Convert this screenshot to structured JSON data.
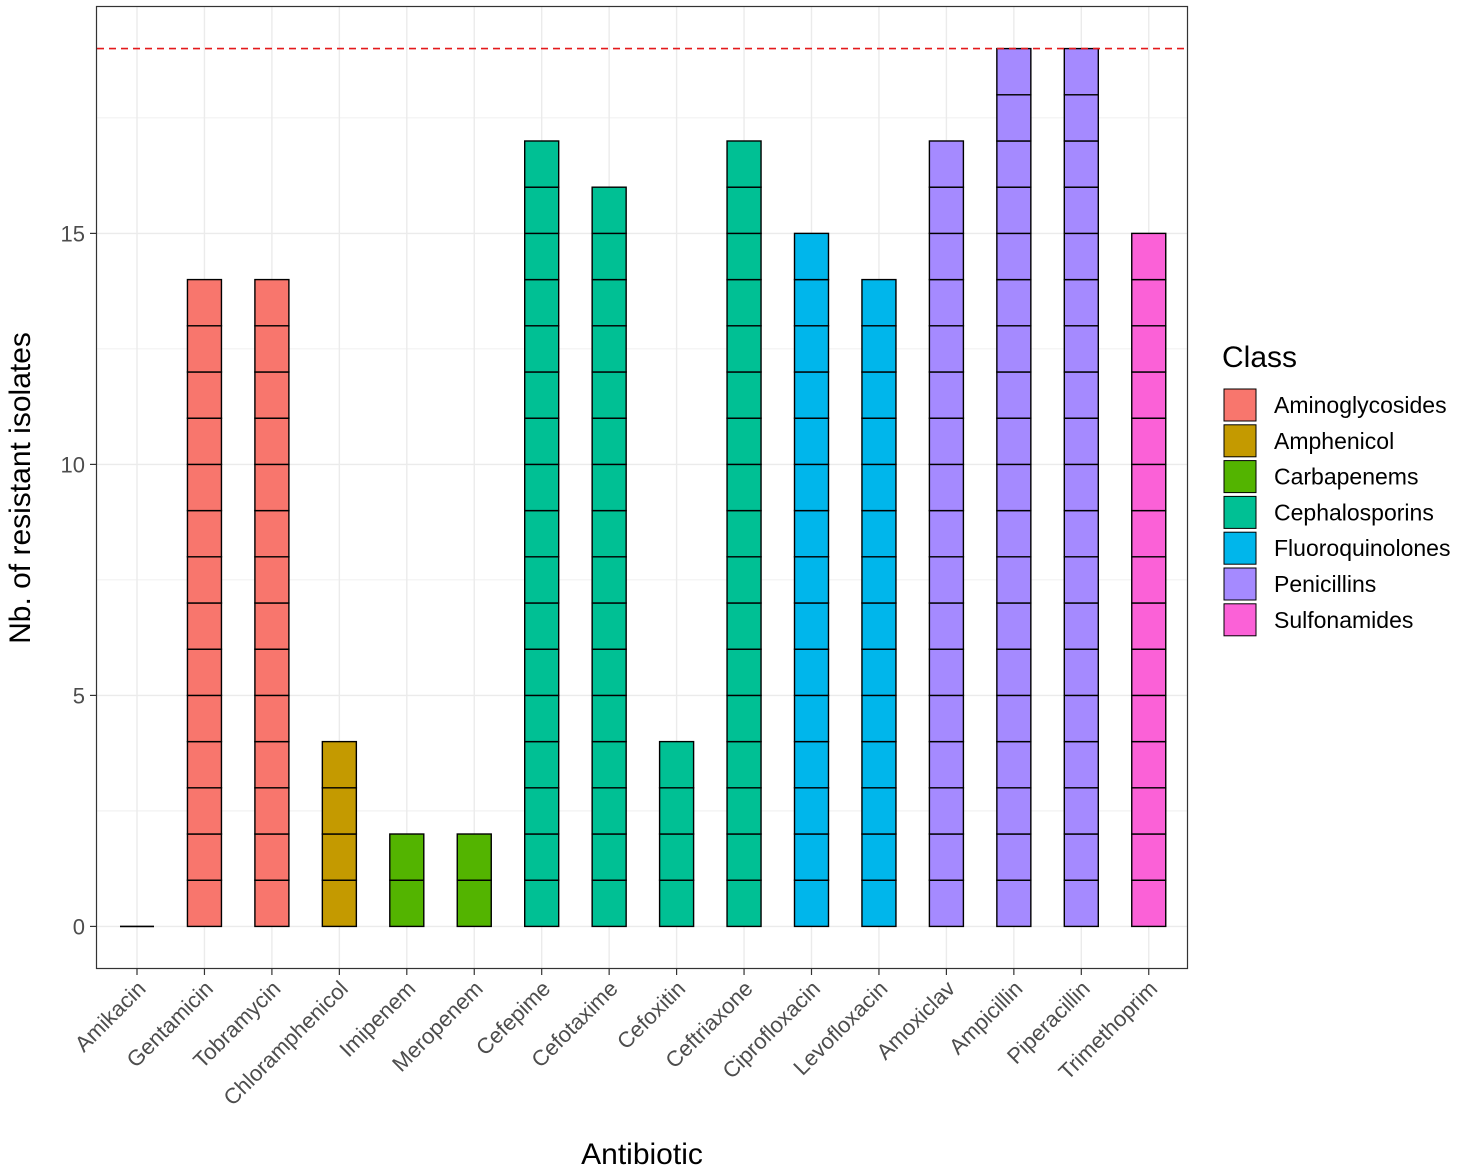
{
  "chart_data": {
    "type": "bar",
    "style": "stacked-unit-blocks",
    "title": "",
    "xlabel": "Antibiotic",
    "ylabel": "Nb. of resistant isolates",
    "ylim": [
      -0.9,
      19.9
    ],
    "yticks": [
      0,
      5,
      10,
      15
    ],
    "reference_line": {
      "y": 19,
      "color": "#e41a1c",
      "style": "dashed"
    },
    "categories": [
      "Amikacin",
      "Gentamicin",
      "Tobramycin",
      "Chloramphenicol",
      "Imipenem",
      "Meropenem",
      "Cefepime",
      "Cefotaxime",
      "Cefoxitin",
      "Ceftriaxone",
      "Ciprofloxacin",
      "Levofloxacin",
      "Amoxiclav",
      "Ampicillin",
      "Piperacillin",
      "Trimethoprim"
    ],
    "values": [
      0,
      14,
      14,
      4,
      2,
      2,
      17,
      16,
      4,
      17,
      15,
      14,
      17,
      19,
      19,
      15
    ],
    "classes": [
      "Aminoglycosides",
      "Aminoglycosides",
      "Aminoglycosides",
      "Amphenicol",
      "Carbapenems",
      "Carbapenems",
      "Cephalosporins",
      "Cephalosporins",
      "Cephalosporins",
      "Cephalosporins",
      "Fluoroquinolones",
      "Fluoroquinolones",
      "Penicillins",
      "Penicillins",
      "Penicillins",
      "Sulfonamides"
    ],
    "legend": {
      "title": "Class",
      "position": "right",
      "entries": [
        {
          "name": "Aminoglycosides",
          "color": "#F8766D"
        },
        {
          "name": "Amphenicol",
          "color": "#C49A00"
        },
        {
          "name": "Carbapenems",
          "color": "#53B400"
        },
        {
          "name": "Cephalosporins",
          "color": "#00C094"
        },
        {
          "name": "Fluoroquinolones",
          "color": "#00B6EB"
        },
        {
          "name": "Penicillins",
          "color": "#A58AFF"
        },
        {
          "name": "Sulfonamides",
          "color": "#FB61D7"
        }
      ]
    },
    "grid": true
  }
}
